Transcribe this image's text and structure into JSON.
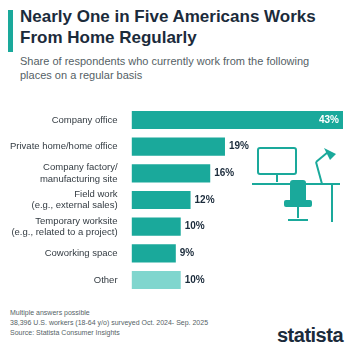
{
  "chart_data": {
    "type": "bar",
    "orientation": "horizontal",
    "title": "Nearly One in Five Americans Works From Home Regularly",
    "subtitle": "Share of respondents who currently work from the following places on a regular basis",
    "categories": [
      "Company office",
      "Private home/home office",
      "Company factory/ manufacturing site",
      "Field work (e.g., external sales)",
      "Temporary worksite (e.g., related to a project)",
      "Coworking space",
      "Other"
    ],
    "values": [
      43,
      19,
      16,
      12,
      10,
      9,
      10
    ],
    "value_labels": [
      "43%",
      "19%",
      "16%",
      "12%",
      "10%",
      "9%",
      "10%"
    ],
    "colors": [
      "#1aa99b",
      "#1aa99b",
      "#1aa99b",
      "#1aa99b",
      "#1aa99b",
      "#1aa99b",
      "#80d6ce"
    ],
    "xlim": [
      0,
      43
    ],
    "grid": false,
    "data_labels": true,
    "tick_labels": "y",
    "notes": [
      "Multiple answers possible",
      "38,396 U.S. workers (18-64 y/o) surveyed Oct. 2024- Sep. 2025",
      "Source: Statista Consumer Insights"
    ],
    "logo": "statista"
  }
}
